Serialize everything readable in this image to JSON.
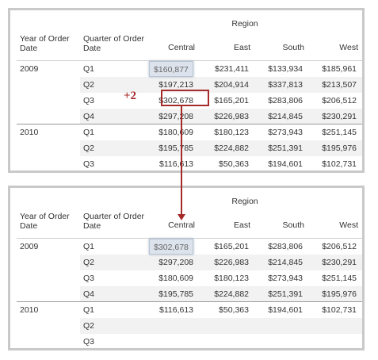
{
  "offset_label": "+2",
  "colors": {
    "highlight": "#a52a2a",
    "selection": "#dde3ec",
    "stripe": "#f2f2f2",
    "border": "#c9c9c9"
  },
  "top_table": {
    "region_title": "Region",
    "year_header": "Year of Order Date",
    "quarter_header": "Quarter of Order Date",
    "columns": [
      "Central",
      "East",
      "South",
      "West"
    ],
    "rows": [
      {
        "year": "2009",
        "quarter": "Q1",
        "values": [
          "$160,877",
          "$231,411",
          "$133,934",
          "$185,961"
        ]
      },
      {
        "year": "",
        "quarter": "Q2",
        "values": [
          "$197,213",
          "$204,914",
          "$337,813",
          "$213,507"
        ]
      },
      {
        "year": "",
        "quarter": "Q3",
        "values": [
          "$302,678",
          "$165,201",
          "$283,806",
          "$206,512"
        ]
      },
      {
        "year": "",
        "quarter": "Q4",
        "values": [
          "$297,208",
          "$226,983",
          "$214,845",
          "$230,291"
        ]
      },
      {
        "year": "2010",
        "quarter": "Q1",
        "values": [
          "$180,609",
          "$180,123",
          "$273,943",
          "$251,145"
        ]
      },
      {
        "year": "",
        "quarter": "Q2",
        "values": [
          "$195,785",
          "$224,882",
          "$251,391",
          "$195,976"
        ]
      },
      {
        "year": "",
        "quarter": "Q3",
        "values": [
          "$116,613",
          "$50,363",
          "$194,601",
          "$102,731"
        ]
      }
    ]
  },
  "bottom_table": {
    "region_title": "Region",
    "year_header": "Year of Order Date",
    "quarter_header": "Quarter of Order Date",
    "columns": [
      "Central",
      "East",
      "South",
      "West"
    ],
    "rows": [
      {
        "year": "2009",
        "quarter": "Q1",
        "values": [
          "$302,678",
          "$165,201",
          "$283,806",
          "$206,512"
        ]
      },
      {
        "year": "",
        "quarter": "Q2",
        "values": [
          "$297,208",
          "$226,983",
          "$214,845",
          "$230,291"
        ]
      },
      {
        "year": "",
        "quarter": "Q3",
        "values": [
          "$180,609",
          "$180,123",
          "$273,943",
          "$251,145"
        ]
      },
      {
        "year": "",
        "quarter": "Q4",
        "values": [
          "$195,785",
          "$224,882",
          "$251,391",
          "$195,976"
        ]
      },
      {
        "year": "2010",
        "quarter": "Q1",
        "values": [
          "$116,613",
          "$50,363",
          "$194,601",
          "$102,731"
        ]
      },
      {
        "year": "",
        "quarter": "Q2",
        "values": [
          "",
          "",
          "",
          ""
        ]
      },
      {
        "year": "",
        "quarter": "Q3",
        "values": [
          "",
          "",
          "",
          ""
        ]
      }
    ]
  }
}
